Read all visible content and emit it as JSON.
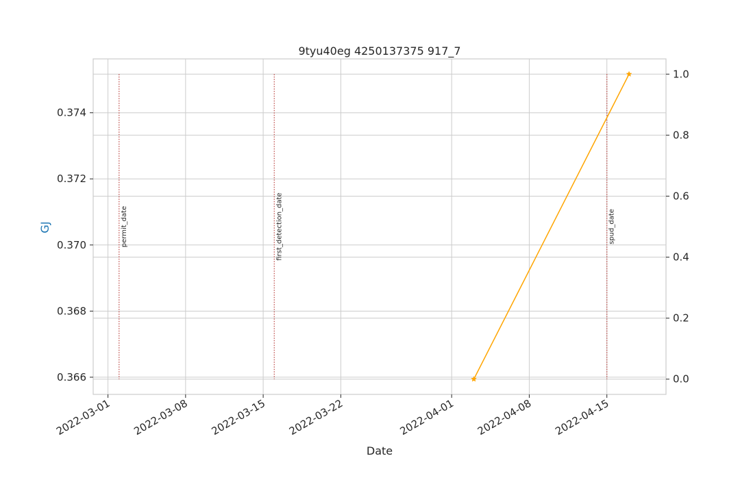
{
  "chart_data": {
    "type": "line",
    "title": "9tyu40eg 4250137375 917_7",
    "xlabel": "Date",
    "ylabel_left": "GJ",
    "ylabel_right": "",
    "x_ticks": [
      "2022-03-01",
      "2022-03-08",
      "2022-03-15",
      "2022-03-22",
      "2022-04-01",
      "2022-04-08",
      "2022-04-15"
    ],
    "y_left_ticks": [
      "0.366",
      "0.368",
      "0.370",
      "0.372",
      "0.374"
    ],
    "y_left_lim": [
      0.36548,
      0.37563
    ],
    "y_right_ticks": [
      "0.0",
      "0.2",
      "0.4",
      "0.6",
      "0.8",
      "1.0"
    ],
    "y_right_lim": [
      -0.05,
      1.05
    ],
    "x_range": [
      "2022-02-27T16:00",
      "2022-04-20T08:00"
    ],
    "grid": true,
    "series": [
      {
        "axis": "right",
        "color": "#FFA500",
        "marker": "star",
        "points": [
          {
            "x": "2022-04-03",
            "y": 0.0
          },
          {
            "x": "2022-04-17",
            "y": 1.0
          }
        ]
      }
    ],
    "annotations": [
      {
        "label": "permit_date",
        "x": "2022-03-02",
        "color": "#C0504D"
      },
      {
        "label": "first_detection_date",
        "x": "2022-03-16",
        "color": "#C0504D"
      },
      {
        "label": "spud_date",
        "x": "2022-04-15",
        "color": "#C0504D"
      }
    ]
  },
  "colors": {
    "left_axis_label": "#1f77b4",
    "grid": "#cccccc",
    "frame": "#cccccc",
    "text": "#262626"
  }
}
